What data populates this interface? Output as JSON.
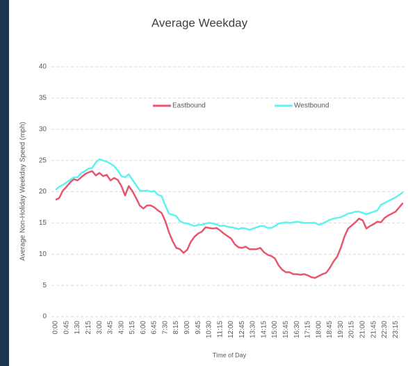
{
  "chart_data": {
    "type": "line",
    "title": "Average Weekday",
    "x_label": "Time of Day",
    "y_label": "Average Non-Holiday Weekday Speed (mph)",
    "categories": [
      "0:00",
      null,
      null,
      "0:45",
      null,
      null,
      "1:30",
      null,
      null,
      "2:15",
      null,
      null,
      "3:00",
      null,
      null,
      "3:45",
      null,
      null,
      "4:30",
      null,
      null,
      "5:15",
      null,
      null,
      "6:00",
      null,
      null,
      "6:45",
      null,
      null,
      "7:30",
      null,
      null,
      "8:15",
      null,
      null,
      "9:00",
      null,
      null,
      "9:45",
      null,
      null,
      "10:30",
      null,
      null,
      "11:15",
      null,
      null,
      "12:00",
      null,
      null,
      "12:45",
      null,
      null,
      "13:30",
      null,
      null,
      "14:15",
      null,
      null,
      "15:00",
      null,
      null,
      "15:45",
      null,
      null,
      "16:30",
      null,
      null,
      "17:15",
      null,
      null,
      "18:00",
      null,
      null,
      "18:45",
      null,
      null,
      "19:30",
      null,
      null,
      "20:15",
      null,
      null,
      "21:00",
      null,
      null,
      "21:45",
      null,
      null,
      "22:30",
      null,
      null,
      "23:15",
      null,
      null
    ],
    "series": [
      {
        "name": "Eastbound",
        "color": "#e9566b",
        "values": [
          18.7,
          19.0,
          20.2,
          20.8,
          21.5,
          22.0,
          21.8,
          22.3,
          22.8,
          23.1,
          23.3,
          22.6,
          23.0,
          22.5,
          22.7,
          21.8,
          22.2,
          21.9,
          20.9,
          19.4,
          20.9,
          20.1,
          19.0,
          17.8,
          17.3,
          17.8,
          17.8,
          17.5,
          17.0,
          16.6,
          15.3,
          13.5,
          12.1,
          11.0,
          10.8,
          10.2,
          10.7,
          12.0,
          12.8,
          13.3,
          13.6,
          14.3,
          14.2,
          14.1,
          14.2,
          13.8,
          13.3,
          12.9,
          12.5,
          11.6,
          11.1,
          11.0,
          11.2,
          10.8,
          10.8,
          10.8,
          11.0,
          10.3,
          9.9,
          9.7,
          9.3,
          8.2,
          7.5,
          7.1,
          7.1,
          6.8,
          6.8,
          6.7,
          6.8,
          6.6,
          6.3,
          6.2,
          6.5,
          6.8,
          7.0,
          7.8,
          8.8,
          9.6,
          11.0,
          12.8,
          14.1,
          14.6,
          15.1,
          15.7,
          15.4,
          14.1,
          14.5,
          14.8,
          15.2,
          15.1,
          15.8,
          16.2,
          16.5,
          16.8,
          17.5,
          18.2
        ]
      },
      {
        "name": "Westbound",
        "color": "#5ef3ee",
        "values": [
          20.3,
          20.8,
          21.1,
          21.5,
          21.9,
          22.3,
          22.3,
          23.0,
          23.3,
          23.7,
          23.8,
          24.7,
          25.2,
          25.0,
          24.8,
          24.5,
          24.1,
          23.4,
          22.5,
          22.3,
          22.8,
          21.9,
          21.1,
          20.2,
          20.1,
          20.2,
          20.0,
          20.1,
          19.5,
          19.3,
          17.8,
          16.5,
          16.3,
          16.1,
          15.3,
          15.0,
          14.9,
          14.7,
          14.5,
          14.7,
          14.7,
          14.9,
          15.0,
          14.9,
          14.8,
          14.5,
          14.6,
          14.4,
          14.3,
          14.2,
          14.0,
          14.2,
          14.1,
          13.9,
          14.1,
          14.3,
          14.5,
          14.5,
          14.2,
          14.2,
          14.5,
          14.9,
          15.0,
          15.1,
          15.0,
          15.1,
          15.2,
          15.1,
          15.0,
          15.0,
          15.0,
          15.0,
          14.7,
          14.9,
          15.2,
          15.5,
          15.7,
          15.8,
          15.9,
          16.2,
          16.5,
          16.6,
          16.8,
          16.8,
          16.6,
          16.4,
          16.6,
          16.8,
          17.0,
          17.9,
          18.2,
          18.5,
          18.8,
          19.1,
          19.5,
          19.9
        ]
      }
    ],
    "ylim": [
      0,
      40
    ],
    "yticks": [
      0,
      5,
      10,
      15,
      20,
      25,
      30,
      35,
      40
    ],
    "grid": true,
    "legend": "top"
  }
}
